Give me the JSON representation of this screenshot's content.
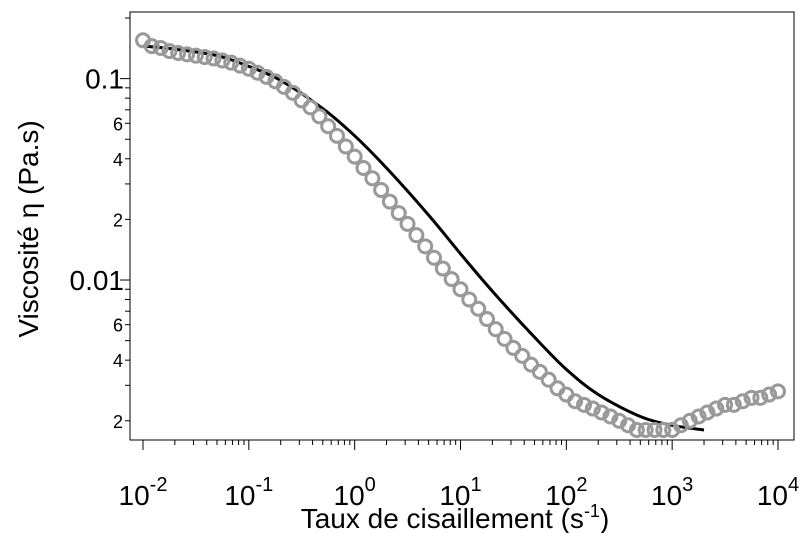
{
  "chart_data": {
    "type": "scatter",
    "title": "",
    "xlabel": "Taux de cisaillement (s-1)",
    "xlabel_parts": {
      "main": "Taux de cisaillement (s",
      "sup": "-1",
      "close": ")"
    },
    "ylabel": "Viscosité η (Pa.s)",
    "x_scale": "log",
    "y_scale": "log",
    "xlim": [
      0.01,
      10000
    ],
    "ylim": [
      0.0018,
      0.2
    ],
    "x_ticks": [
      {
        "base": "10",
        "exp": "-2",
        "value": 0.01
      },
      {
        "base": "10",
        "exp": "-1",
        "value": 0.1
      },
      {
        "base": "10",
        "exp": "0",
        "value": 1
      },
      {
        "base": "10",
        "exp": "1",
        "value": 10
      },
      {
        "base": "10",
        "exp": "2",
        "value": 100
      },
      {
        "base": "10",
        "exp": "3",
        "value": 1000
      },
      {
        "base": "10",
        "exp": "4",
        "value": 10000
      }
    ],
    "y_major_ticks": [
      {
        "label": "0.1",
        "value": 0.1
      },
      {
        "label": "0.01",
        "value": 0.01
      }
    ],
    "y_minor_labels": [
      {
        "label": "6",
        "value": 0.06
      },
      {
        "label": "4",
        "value": 0.04
      },
      {
        "label": "2",
        "value": 0.02
      },
      {
        "label": "6",
        "value": 0.006
      },
      {
        "label": "4",
        "value": 0.004
      },
      {
        "label": "2",
        "value": 0.002
      }
    ],
    "grid": false,
    "legend": "none",
    "series": [
      {
        "kind": "markers",
        "marker": "open-circle",
        "color": "#999999",
        "x": [
          0.01,
          0.0121,
          0.0147,
          0.0178,
          0.0215,
          0.0261,
          0.0316,
          0.0383,
          0.0464,
          0.0562,
          0.0681,
          0.0825,
          0.1,
          0.121,
          0.147,
          0.178,
          0.215,
          0.261,
          0.316,
          0.383,
          0.464,
          0.562,
          0.681,
          0.825,
          1.0,
          1.21,
          1.47,
          1.78,
          2.15,
          2.61,
          3.16,
          3.83,
          4.64,
          5.62,
          6.81,
          8.25,
          10.0,
          12.1,
          14.7,
          17.8,
          21.5,
          26.1,
          31.6,
          38.3,
          46.4,
          56.2,
          68.1,
          82.5,
          100,
          121,
          147,
          178,
          215,
          261,
          316,
          383,
          464,
          562,
          681,
          825,
          1000,
          1210,
          1470,
          1780,
          2150,
          2610,
          3160,
          3830,
          4640,
          5620,
          6810,
          8250,
          10000
        ],
        "y": [
          0.155,
          0.145,
          0.142,
          0.137,
          0.134,
          0.132,
          0.13,
          0.128,
          0.126,
          0.123,
          0.12,
          0.116,
          0.112,
          0.107,
          0.102,
          0.097,
          0.091,
          0.085,
          0.078,
          0.072,
          0.065,
          0.058,
          0.052,
          0.046,
          0.041,
          0.036,
          0.032,
          0.028,
          0.0245,
          0.0215,
          0.019,
          0.0167,
          0.0147,
          0.0129,
          0.0114,
          0.0101,
          0.009,
          0.008,
          0.0072,
          0.0064,
          0.0057,
          0.0051,
          0.0046,
          0.0042,
          0.0038,
          0.0035,
          0.0032,
          0.0029,
          0.0027,
          0.0025,
          0.0024,
          0.0023,
          0.0022,
          0.0021,
          0.002,
          0.0019,
          0.0018,
          0.0018,
          0.0018,
          0.0018,
          0.0018,
          0.0019,
          0.002,
          0.0021,
          0.0022,
          0.0023,
          0.0024,
          0.0024,
          0.0025,
          0.0026,
          0.0026,
          0.0027,
          0.0028
        ]
      },
      {
        "kind": "fit-line",
        "color": "#000000",
        "x": [
          0.01,
          0.02,
          0.05,
          0.1,
          0.2,
          0.5,
          1,
          2,
          5,
          10,
          20,
          50,
          100,
          200,
          500,
          1000,
          2000
        ],
        "y": [
          0.145,
          0.14,
          0.13,
          0.115,
          0.098,
          0.071,
          0.052,
          0.036,
          0.021,
          0.0135,
          0.0088,
          0.0052,
          0.0036,
          0.0027,
          0.0021,
          0.0019,
          0.0018
        ]
      }
    ]
  }
}
